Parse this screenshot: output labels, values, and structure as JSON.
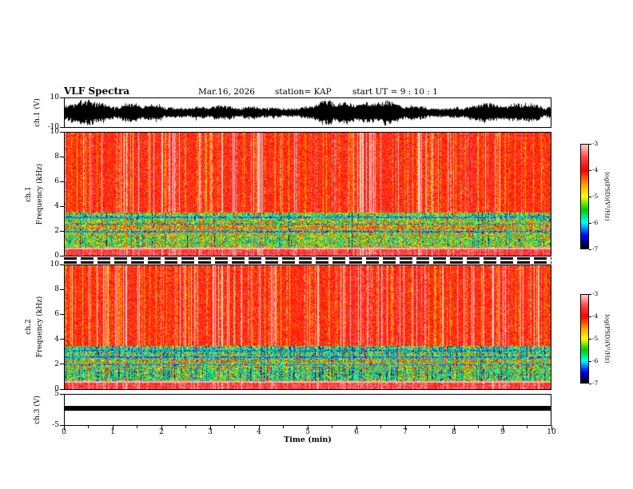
{
  "chart_data": {
    "type": "heatmap",
    "title": "VLF Spectra",
    "header": {
      "date": "Mar.16, 2026",
      "station": "station= KAP",
      "start_ut": "start UT =  9 : 10 : 1"
    },
    "x": {
      "label": "Time (min)",
      "min": 0,
      "max": 10,
      "ticks": [
        0,
        1,
        2,
        3,
        4,
        5,
        6,
        7,
        8,
        9,
        10
      ]
    },
    "panels": [
      {
        "id": "ch1-wave",
        "kind": "waveform",
        "ylabel": "ch.1 (V)",
        "ymin": -10,
        "ymax": 10,
        "yticks": [
          10,
          -10
        ],
        "amp_v": 7,
        "color": "#000000",
        "seed": 3
      },
      {
        "id": "ch1-spec",
        "kind": "spectrogram",
        "ylabel_ch": "ch.1",
        "ylabel_freq": "Frequency (kHz)",
        "ymin": 0,
        "ymax": 10,
        "yticks": [
          10,
          8,
          6,
          4,
          2,
          0
        ],
        "band_top_khz": 3.5,
        "gap_khz": 0.62,
        "bottom_khz": 0.5,
        "dark_lines_khz": [
          1.95,
          2.55,
          3.1
        ],
        "green_bias": 0.08,
        "green_speckle": 0.1,
        "seed": 7
      },
      {
        "id": "ch2-spec",
        "kind": "spectrogram",
        "ylabel_ch": "ch.2",
        "ylabel_freq": "Frequency (kHz)",
        "ymin": 0,
        "ymax": 10,
        "yticks": [
          10,
          8,
          6,
          4,
          2,
          0
        ],
        "band_top_khz": 3.5,
        "gap_khz": 0.62,
        "bottom_khz": 0.5,
        "dark_lines_khz": [
          1.95,
          2.55,
          3.1
        ],
        "green_bias": 0.3,
        "green_speckle": 0.22,
        "seed": 99
      },
      {
        "id": "ch3-wave",
        "kind": "dc-bar",
        "ylabel": "ch.3 (V)",
        "ymin": -5,
        "ymax": 5,
        "yticks": [
          5,
          -5
        ],
        "bar_center_v": 0.6,
        "bar_half_v": 0.8,
        "color": "#000000"
      }
    ],
    "colorbar": {
      "label": "log(PSD)(V²/Hz)",
      "tick_values": [
        -3,
        -4,
        -5,
        -6,
        -7
      ],
      "stops": [
        {
          "v": -3.0,
          "c": "#ffd0d0"
        },
        {
          "v": -3.5,
          "c": "#ff4444"
        },
        {
          "v": -4.0,
          "c": "#ff0000"
        },
        {
          "v": -4.5,
          "c": "#ff9900"
        },
        {
          "v": -5.0,
          "c": "#ffff00"
        },
        {
          "v": -5.5,
          "c": "#00cc00"
        },
        {
          "v": -6.0,
          "c": "#00ffff"
        },
        {
          "v": -6.5,
          "c": "#0000ff"
        },
        {
          "v": -7.0,
          "c": "#000000"
        }
      ]
    }
  }
}
